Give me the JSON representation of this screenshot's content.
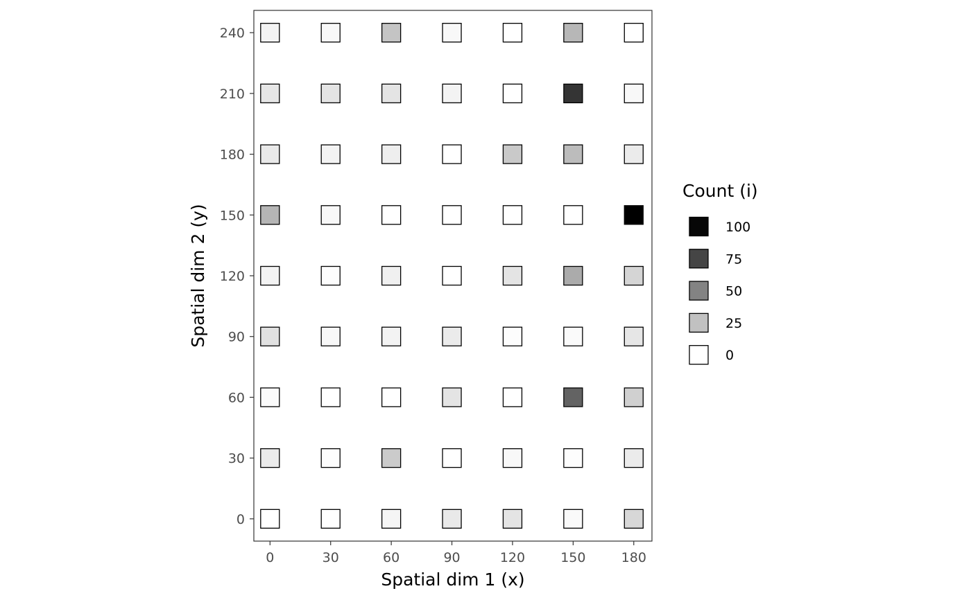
{
  "chart_data": {
    "type": "heatmap",
    "title": "",
    "xlabel": "Spatial dim 1 (x)",
    "ylabel": "Spatial dim 2 (y)",
    "x_ticks": [
      "0",
      "30",
      "60",
      "90",
      "120",
      "150",
      "180"
    ],
    "y_ticks": [
      "0",
      "30",
      "60",
      "90",
      "120",
      "150",
      "180",
      "210",
      "240"
    ],
    "x": [
      0,
      30,
      60,
      90,
      120,
      150,
      180
    ],
    "y": [
      0,
      30,
      60,
      90,
      120,
      150,
      180,
      210,
      240
    ],
    "xlim": [
      -8,
      189
    ],
    "ylim": [
      -11,
      251
    ],
    "grid": false,
    "legend": {
      "title": "Count (i)",
      "position": "right",
      "breaks": [
        100,
        75,
        50,
        25,
        0
      ],
      "labels": [
        "100",
        "75",
        "50",
        "25",
        "0"
      ]
    },
    "color_scale": {
      "low": "#ffffff",
      "high": "#000000",
      "min": 0,
      "max": 103
    },
    "counts": [
      [
        0,
        0,
        4,
        9,
        11,
        2,
        16
      ],
      [
        8,
        1,
        21,
        0,
        3,
        1,
        8
      ],
      [
        2,
        0,
        0,
        11,
        0,
        63,
        19
      ],
      [
        12,
        3,
        5,
        8,
        1,
        2,
        10
      ],
      [
        5,
        1,
        6,
        0,
        11,
        34,
        17
      ],
      [
        30,
        3,
        0,
        0,
        0,
        0,
        103
      ],
      [
        9,
        5,
        7,
        0,
        22,
        27,
        8
      ],
      [
        10,
        11,
        11,
        5,
        0,
        82,
        3
      ],
      [
        5,
        3,
        24,
        3,
        0,
        29,
        0
      ]
    ]
  }
}
